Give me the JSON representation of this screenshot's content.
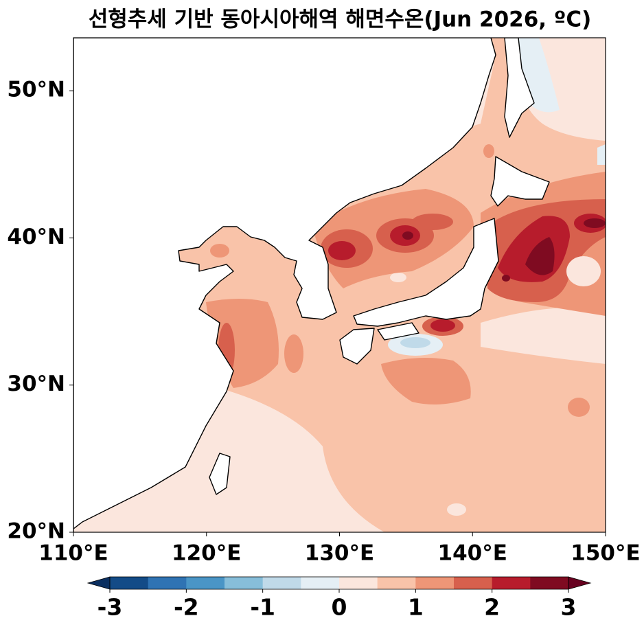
{
  "chart_data": {
    "type": "map",
    "title": "선형추세 기반 동아시아해역 해면수온(Jun 2026, ºC)",
    "xlim": [
      110,
      150
    ],
    "ylim": [
      20,
      53.6
    ],
    "xticks": [
      {
        "value": 110,
        "label": "110°E"
      },
      {
        "value": 120,
        "label": "120°E"
      },
      {
        "value": 130,
        "label": "130°E"
      },
      {
        "value": 140,
        "label": "140°E"
      },
      {
        "value": 150,
        "label": "150°E"
      }
    ],
    "yticks": [
      {
        "value": 20,
        "label": "20°N"
      },
      {
        "value": 30,
        "label": "30°N"
      },
      {
        "value": 40,
        "label": "40°N"
      },
      {
        "value": 50,
        "label": "50°N"
      }
    ],
    "colorbar": {
      "lim": [
        -3,
        3
      ],
      "ticks": [
        -3,
        -2,
        -1,
        0,
        1,
        2,
        3
      ],
      "colors": [
        "#134b87",
        "#2f73b3",
        "#4a95c6",
        "#87beda",
        "#c0dae9",
        "#e5eff5",
        "#fbe6dd",
        "#f9c3a9",
        "#ee9677",
        "#d7604d",
        "#b71c2c",
        "#7f0b21"
      ],
      "extend": "both",
      "under_color": "#0a2f60",
      "over_color": "#67001f"
    }
  }
}
